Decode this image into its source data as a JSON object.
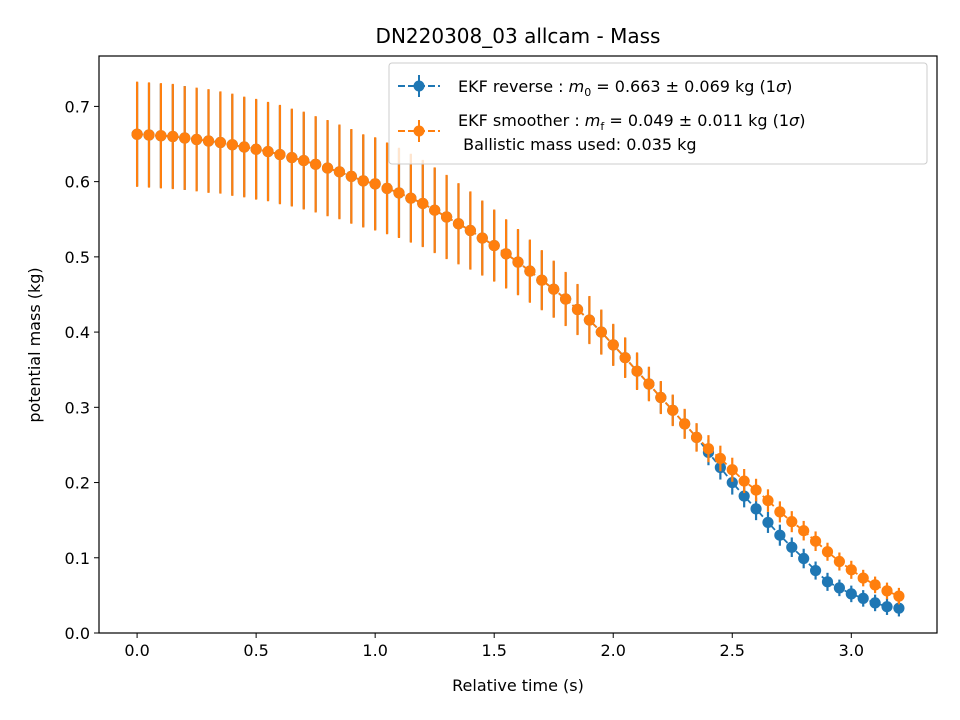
{
  "chart_data": {
    "type": "scatter",
    "title": "DN220308_03 allcam - Mass",
    "xlabel": "Relative time (s)",
    "ylabel": "potential mass (kg)",
    "xlim": [
      -0.16,
      3.36
    ],
    "ylim": [
      0.0,
      0.767
    ],
    "xticks": [
      "0.0",
      "0.5",
      "1.0",
      "1.5",
      "2.0",
      "2.5",
      "3.0"
    ],
    "xtick_values": [
      0.0,
      0.5,
      1.0,
      1.5,
      2.0,
      2.5,
      3.0
    ],
    "yticks": [
      "0.0",
      "0.1",
      "0.2",
      "0.3",
      "0.4",
      "0.5",
      "0.6",
      "0.7"
    ],
    "ytick_values": [
      0.0,
      0.1,
      0.2,
      0.3,
      0.4,
      0.5,
      0.6,
      0.7
    ],
    "grid": false,
    "legend_position": "top-right",
    "series": [
      {
        "name": "EKF reverse",
        "legend_prefix": "EKF reverse : ",
        "legend_symbol": "m",
        "legend_subscript": "0",
        "legend_value": " =  0.663 ± 0.069 kg (1",
        "legend_sigma": "σ",
        "legend_suffix": ")",
        "color": "#1f77b4",
        "linestyle": "dashed",
        "x": [
          0.0,
          0.05,
          0.1,
          0.15,
          0.2,
          0.25,
          0.3,
          0.35,
          0.4,
          0.45,
          0.5,
          0.55,
          0.6,
          0.65,
          0.7,
          0.75,
          0.8,
          0.85,
          0.9,
          0.95,
          1.0,
          1.05,
          1.1,
          1.15,
          1.2,
          1.25,
          1.3,
          1.35,
          1.4,
          1.45,
          1.5,
          1.55,
          1.6,
          1.65,
          1.7,
          1.75,
          1.8,
          1.85,
          1.9,
          1.95,
          2.0,
          2.05,
          2.1,
          2.15,
          2.2,
          2.25,
          2.3,
          2.35,
          2.4,
          2.45,
          2.5,
          2.55,
          2.6,
          2.65,
          2.7,
          2.75,
          2.8,
          2.85,
          2.9,
          2.95,
          3.0,
          3.05,
          3.1,
          3.15,
          3.2
        ],
        "y": [
          0.663,
          0.662,
          0.661,
          0.66,
          0.658,
          0.656,
          0.654,
          0.652,
          0.649,
          0.646,
          0.643,
          0.64,
          0.636,
          0.632,
          0.628,
          0.623,
          0.618,
          0.613,
          0.607,
          0.601,
          0.597,
          0.591,
          0.585,
          0.578,
          0.571,
          0.562,
          0.553,
          0.544,
          0.535,
          0.525,
          0.515,
          0.504,
          0.493,
          0.481,
          0.469,
          0.457,
          0.444,
          0.43,
          0.416,
          0.4,
          0.383,
          0.366,
          0.348,
          0.331,
          0.313,
          0.296,
          0.278,
          0.26,
          0.24,
          0.22,
          0.2,
          0.182,
          0.165,
          0.147,
          0.13,
          0.114,
          0.099,
          0.083,
          0.068,
          0.06,
          0.052,
          0.046,
          0.04,
          0.035,
          0.033
        ],
        "err": [
          0.069,
          0.069,
          0.069,
          0.069,
          0.069,
          0.068,
          0.068,
          0.067,
          0.067,
          0.066,
          0.066,
          0.065,
          0.065,
          0.064,
          0.064,
          0.063,
          0.063,
          0.062,
          0.062,
          0.061,
          0.061,
          0.06,
          0.059,
          0.058,
          0.057,
          0.056,
          0.055,
          0.053,
          0.051,
          0.049,
          0.047,
          0.045,
          0.043,
          0.041,
          0.039,
          0.037,
          0.035,
          0.033,
          0.031,
          0.029,
          0.027,
          0.026,
          0.024,
          0.022,
          0.021,
          0.02,
          0.019,
          0.018,
          0.017,
          0.016,
          0.016,
          0.015,
          0.015,
          0.014,
          0.014,
          0.013,
          0.013,
          0.012,
          0.012,
          0.011,
          0.011,
          0.011,
          0.011,
          0.011,
          0.011
        ]
      },
      {
        "name": "EKF smoother",
        "legend_prefix": "EKF smoother : ",
        "legend_symbol": "m",
        "legend_subscript": "f",
        "legend_value": " =  0.049 ± 0.011 kg (1",
        "legend_sigma": "σ",
        "legend_suffix": ")",
        "legend_extra": " Ballistic mass used: 0.035 kg",
        "color": "#ff7f0e",
        "linestyle": "dashed",
        "x": [
          0.0,
          0.05,
          0.1,
          0.15,
          0.2,
          0.25,
          0.3,
          0.35,
          0.4,
          0.45,
          0.5,
          0.55,
          0.6,
          0.65,
          0.7,
          0.75,
          0.8,
          0.85,
          0.9,
          0.95,
          1.0,
          1.05,
          1.1,
          1.15,
          1.2,
          1.25,
          1.3,
          1.35,
          1.4,
          1.45,
          1.5,
          1.55,
          1.6,
          1.65,
          1.7,
          1.75,
          1.8,
          1.85,
          1.9,
          1.95,
          2.0,
          2.05,
          2.1,
          2.15,
          2.2,
          2.25,
          2.3,
          2.35,
          2.4,
          2.45,
          2.5,
          2.55,
          2.6,
          2.65,
          2.7,
          2.75,
          2.8,
          2.85,
          2.9,
          2.95,
          3.0,
          3.05,
          3.1,
          3.15,
          3.2
        ],
        "y": [
          0.663,
          0.662,
          0.661,
          0.66,
          0.658,
          0.656,
          0.654,
          0.652,
          0.649,
          0.646,
          0.643,
          0.64,
          0.636,
          0.632,
          0.628,
          0.623,
          0.618,
          0.613,
          0.607,
          0.601,
          0.597,
          0.591,
          0.585,
          0.578,
          0.571,
          0.562,
          0.553,
          0.544,
          0.535,
          0.525,
          0.515,
          0.504,
          0.493,
          0.481,
          0.469,
          0.457,
          0.444,
          0.43,
          0.416,
          0.4,
          0.383,
          0.366,
          0.348,
          0.331,
          0.313,
          0.296,
          0.278,
          0.26,
          0.245,
          0.232,
          0.217,
          0.202,
          0.19,
          0.176,
          0.161,
          0.148,
          0.136,
          0.122,
          0.108,
          0.095,
          0.084,
          0.073,
          0.064,
          0.056,
          0.049
        ],
        "err": [
          0.07,
          0.07,
          0.07,
          0.07,
          0.069,
          0.069,
          0.069,
          0.068,
          0.068,
          0.067,
          0.067,
          0.066,
          0.066,
          0.065,
          0.065,
          0.064,
          0.064,
          0.063,
          0.063,
          0.062,
          0.062,
          0.061,
          0.06,
          0.059,
          0.058,
          0.057,
          0.056,
          0.054,
          0.052,
          0.05,
          0.048,
          0.046,
          0.044,
          0.042,
          0.04,
          0.038,
          0.036,
          0.034,
          0.032,
          0.03,
          0.028,
          0.027,
          0.025,
          0.023,
          0.022,
          0.021,
          0.02,
          0.019,
          0.018,
          0.017,
          0.016,
          0.016,
          0.015,
          0.015,
          0.014,
          0.014,
          0.013,
          0.013,
          0.012,
          0.012,
          0.012,
          0.011,
          0.011,
          0.011,
          0.011
        ]
      }
    ]
  }
}
